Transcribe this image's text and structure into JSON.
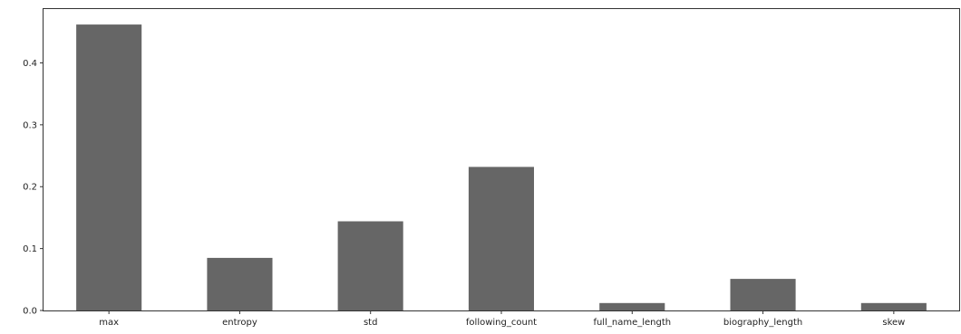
{
  "chart_data": {
    "type": "bar",
    "categories": [
      "max",
      "entropy",
      "std",
      "following_count",
      "full_name_length",
      "biography_length",
      "skew"
    ],
    "values": [
      0.462,
      0.085,
      0.144,
      0.232,
      0.012,
      0.051,
      0.012
    ],
    "yticks": [
      0.0,
      0.1,
      0.2,
      0.3,
      0.4
    ],
    "ytick_labels": [
      "0.0",
      "0.1",
      "0.2",
      "0.3",
      "0.4"
    ],
    "ylim": [
      0,
      0.487
    ],
    "title": "",
    "xlabel": "",
    "ylabel": "",
    "grid": false,
    "legend": "none",
    "bar_color": "#666666"
  }
}
